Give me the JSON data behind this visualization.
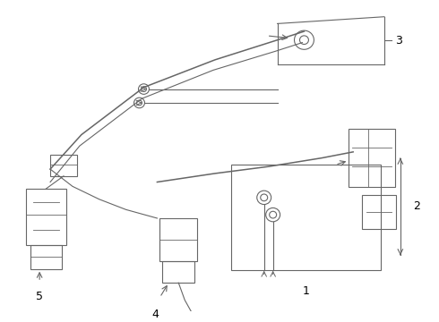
{
  "bg_color": "#ffffff",
  "line_color": "#666666",
  "label_color": "#000000",
  "label_fontsize": 9,
  "fig_w": 4.9,
  "fig_h": 3.6,
  "dpi": 100
}
